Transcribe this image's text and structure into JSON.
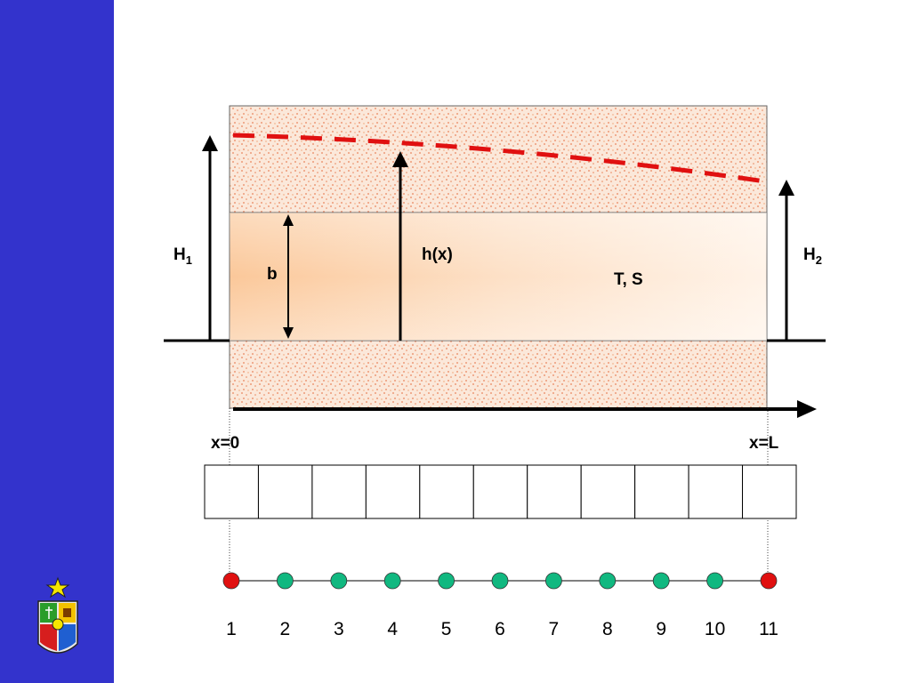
{
  "labels": {
    "h1_main": "H",
    "h1_sub": "1",
    "h2_main": "H",
    "h2_sub": "2",
    "b": "b",
    "hx": "h(x)",
    "ts": "T, S",
    "x0": "x=0",
    "xl": "x=L"
  },
  "grid": {
    "cells": 11
  },
  "nodes": {
    "numbers": [
      "1",
      "2",
      "3",
      "4",
      "5",
      "6",
      "7",
      "8",
      "9",
      "10",
      "11"
    ],
    "boundary_color": "#e01010",
    "interior_color": "#11b880"
  },
  "colors": {
    "sidebar": "#3333cc",
    "head_line": "#e01010",
    "aquifer_light": "#fff0e2",
    "aquifer_dark": "#fbc89a",
    "confining_base": "#fbe8da",
    "confining_speckle": "#e8835a"
  },
  "logo": {
    "name": "university-crest-icon"
  }
}
